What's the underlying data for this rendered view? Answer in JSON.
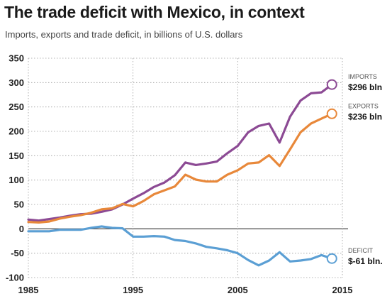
{
  "title": "The trade deficit with Mexico, in context",
  "subtitle": "Imports, exports and trade deficit, in billions of U.S. dollars",
  "chart_data": {
    "type": "line",
    "title": "The trade deficit with Mexico, in context",
    "subtitle": "Imports, exports and trade deficit, in billions of U.S. dollars",
    "xlim": [
      1985,
      2015
    ],
    "ylim": [
      -100,
      350
    ],
    "x_ticks": [
      "1985",
      "1995",
      "2005",
      "2015"
    ],
    "y_ticks": [
      "350",
      "300",
      "250",
      "200",
      "150",
      "100",
      "50",
      "0",
      "-50",
      "-100"
    ],
    "grid": true,
    "x": [
      1985,
      1986,
      1987,
      1988,
      1989,
      1990,
      1991,
      1992,
      1993,
      1994,
      1995,
      1996,
      1997,
      1998,
      1999,
      2000,
      2001,
      2002,
      2003,
      2004,
      2005,
      2006,
      2007,
      2008,
      2009,
      2010,
      2011,
      2012,
      2013,
      2014
    ],
    "series": [
      {
        "name": "IMPORTS",
        "color": "#8c4a94",
        "values": [
          19,
          17,
          20,
          23,
          27,
          30,
          31,
          35,
          40,
          50,
          62,
          73,
          86,
          95,
          110,
          136,
          131,
          134,
          138,
          155,
          170,
          198,
          211,
          216,
          177,
          230,
          263,
          278,
          280,
          296
        ],
        "end_label": {
          "name": "IMPORTS",
          "value": "$296 bln"
        }
      },
      {
        "name": "EXPORTS",
        "color": "#e8883a",
        "values": [
          14,
          13,
          15,
          21,
          25,
          28,
          33,
          40,
          42,
          51,
          46,
          57,
          71,
          79,
          87,
          111,
          101,
          97,
          97,
          111,
          120,
          134,
          136,
          151,
          129,
          163,
          198,
          216,
          226,
          236
        ],
        "end_label": {
          "name": "EXPORTS",
          "value": "$236 bln"
        }
      },
      {
        "name": "DEFICIT",
        "color": "#5b9fd4",
        "values": [
          -5,
          -5,
          -5,
          -2,
          -2,
          -2,
          2,
          5,
          2,
          1,
          -16,
          -16,
          -15,
          -16,
          -23,
          -25,
          -30,
          -37,
          -40,
          -44,
          -50,
          -64,
          -75,
          -65,
          -48,
          -67,
          -65,
          -62,
          -54,
          -61
        ],
        "end_label": {
          "name": "DEFICIT",
          "value": "$-61 bln."
        }
      }
    ]
  }
}
